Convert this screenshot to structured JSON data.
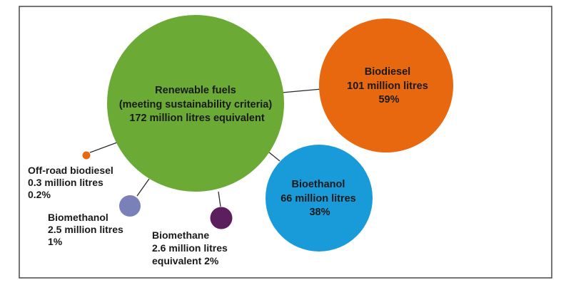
{
  "colors": {
    "renewable": "#6aaa35",
    "biodiesel": "#e8680f",
    "bioethanol": "#1a9bd9",
    "offroad": "#e8680f",
    "biomethanol": "#7a80b8",
    "biomethane": "#5b1f5e"
  },
  "nodes": {
    "renewable": {
      "line1": "Renewable fuels",
      "line2": "(meeting sustainability criteria)",
      "line3": "172 million litres equivalent"
    },
    "biodiesel": {
      "line1": "Biodiesel",
      "line2": "101 million litres",
      "line3": "59%"
    },
    "bioethanol": {
      "line1": "Bioethanol",
      "line2": "66 million litres",
      "line3": "38%"
    },
    "offroad": {
      "line1": "Off-road biodiesel",
      "line2": "0.3 million litres",
      "line3": "0.2%"
    },
    "biomethanol": {
      "line1": "Biomethanol",
      "line2": "2.5 million litres",
      "line3": "1%"
    },
    "biomethane": {
      "line1": "Biomethane",
      "line2": "2.6 million litres",
      "line3": "equivalent 2%"
    }
  }
}
